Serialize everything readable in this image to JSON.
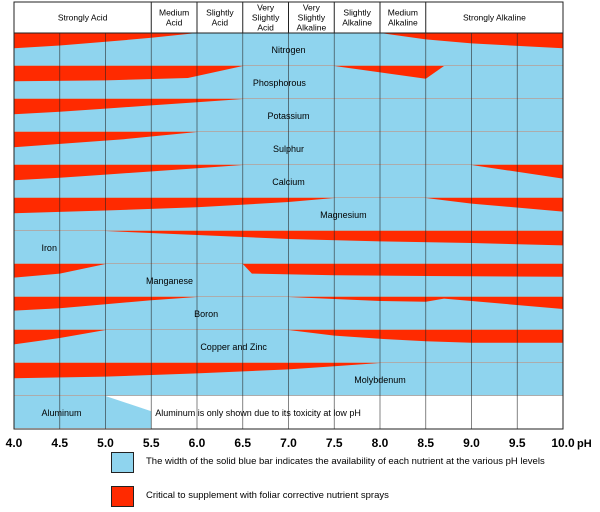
{
  "colors": {
    "blue": "#8fd4ee",
    "red": "#ff2a00",
    "grid": "#222222"
  },
  "header": [
    {
      "label": "Strongly Acid",
      "from": 4.0,
      "to": 5.5
    },
    {
      "label": "Medium Acid",
      "from": 5.5,
      "to": 6.0
    },
    {
      "label": "Slightly Acid",
      "from": 6.0,
      "to": 6.5
    },
    {
      "label": "Very Slightly Acid",
      "from": 6.5,
      "to": 7.0
    },
    {
      "label": "Very Slightly Alkaline",
      "from": 7.0,
      "to": 7.5
    },
    {
      "label": "Slightly Alkaline",
      "from": 7.5,
      "to": 8.0
    },
    {
      "label": "Medium Alkaline",
      "from": 8.0,
      "to": 8.5
    },
    {
      "label": "Strongly Alkaline",
      "from": 8.5,
      "to": 10.0
    }
  ],
  "x_axis": {
    "unit": "pH",
    "ticks": [
      "4.0",
      "4.5",
      "5.0",
      "5.5",
      "6.0",
      "6.5",
      "7.0",
      "7.5",
      "8.0",
      "8.5",
      "9.0",
      "9.5",
      "10.0"
    ],
    "min": 4.0,
    "max": 10.0
  },
  "chart_data": {
    "type": "area",
    "x_unit": "pH",
    "y_meaning": "relative availability (band width, 0 to 1)",
    "series": [
      {
        "name": "Nitrogen",
        "label_ph": 7.0,
        "label_align": "center",
        "red": true,
        "availability": [
          [
            4.0,
            0.05
          ],
          [
            4.5,
            0.22
          ],
          [
            5.0,
            0.45
          ],
          [
            5.5,
            0.7
          ],
          [
            6.0,
            1.0
          ],
          [
            8.0,
            1.0
          ],
          [
            8.5,
            0.6
          ],
          [
            9.0,
            0.35
          ],
          [
            10.0,
            0.05
          ]
        ]
      },
      {
        "name": "Phosphorous",
        "label_ph": 6.9,
        "label_align": "center",
        "red": true,
        "availability": [
          [
            4.0,
            0.05
          ],
          [
            5.0,
            0.1
          ],
          [
            5.9,
            0.25
          ],
          [
            6.5,
            1.0
          ],
          [
            7.5,
            1.0
          ],
          [
            8.5,
            0.2
          ],
          [
            8.7,
            1.0
          ],
          [
            10.0,
            1.0
          ]
        ]
      },
      {
        "name": "Potassium",
        "label_ph": 7.0,
        "label_align": "center",
        "red": true,
        "availability": [
          [
            4.0,
            0.05
          ],
          [
            4.5,
            0.2
          ],
          [
            5.0,
            0.4
          ],
          [
            5.5,
            0.6
          ],
          [
            6.0,
            0.8
          ],
          [
            6.5,
            1.0
          ],
          [
            10.0,
            1.0
          ]
        ]
      },
      {
        "name": "Sulphur",
        "label_ph": 7.0,
        "label_align": "center",
        "red": true,
        "availability": [
          [
            4.0,
            0.05
          ],
          [
            4.6,
            0.3
          ],
          [
            5.2,
            0.55
          ],
          [
            6.0,
            1.0
          ],
          [
            10.0,
            1.0
          ]
        ]
      },
      {
        "name": "Calcium",
        "label_ph": 7.0,
        "label_align": "center",
        "red": true,
        "availability": [
          [
            4.0,
            0.05
          ],
          [
            4.5,
            0.2
          ],
          [
            5.0,
            0.4
          ],
          [
            6.0,
            0.8
          ],
          [
            6.5,
            1.0
          ],
          [
            9.0,
            1.0
          ],
          [
            10.0,
            0.15
          ]
        ]
      },
      {
        "name": "Magnesium",
        "label_ph": 7.6,
        "label_align": "center",
        "red": true,
        "availability": [
          [
            4.0,
            0.05
          ],
          [
            5.0,
            0.22
          ],
          [
            6.0,
            0.42
          ],
          [
            7.0,
            0.75
          ],
          [
            7.5,
            1.0
          ],
          [
            8.5,
            1.0
          ],
          [
            9.0,
            0.65
          ],
          [
            10.0,
            0.15
          ]
        ]
      },
      {
        "name": "Iron",
        "label_ph": 4.3,
        "label_align": "left",
        "red": true,
        "availability": [
          [
            4.0,
            1.0
          ],
          [
            5.0,
            1.0
          ],
          [
            6.0,
            0.75
          ],
          [
            7.0,
            0.5
          ],
          [
            8.0,
            0.35
          ],
          [
            9.0,
            0.25
          ],
          [
            10.0,
            0.1
          ]
        ]
      },
      {
        "name": "Manganese",
        "label_ph": 5.7,
        "label_align": "center",
        "red": true,
        "availability": [
          [
            4.0,
            0.15
          ],
          [
            4.5,
            0.4
          ],
          [
            5.0,
            1.0
          ],
          [
            6.5,
            1.0
          ],
          [
            6.6,
            0.4
          ],
          [
            7.5,
            0.3
          ],
          [
            8.5,
            0.25
          ],
          [
            10.0,
            0.2
          ]
        ]
      },
      {
        "name": "Boron",
        "label_ph": 6.1,
        "label_align": "center",
        "red": true,
        "availability": [
          [
            4.0,
            0.15
          ],
          [
            4.5,
            0.3
          ],
          [
            5.0,
            0.55
          ],
          [
            5.5,
            0.8
          ],
          [
            6.0,
            1.0
          ],
          [
            7.0,
            1.0
          ],
          [
            8.0,
            0.75
          ],
          [
            8.5,
            0.7
          ],
          [
            8.7,
            0.9
          ],
          [
            9.0,
            0.75
          ],
          [
            10.0,
            0.25
          ]
        ]
      },
      {
        "name": "Copper and Zinc",
        "label_ph": 6.4,
        "label_align": "center",
        "red": true,
        "availability": [
          [
            4.0,
            0.1
          ],
          [
            4.5,
            0.5
          ],
          [
            5.0,
            1.0
          ],
          [
            7.0,
            1.0
          ],
          [
            7.5,
            0.65
          ],
          [
            8.0,
            0.45
          ],
          [
            8.5,
            0.3
          ],
          [
            9.0,
            0.2
          ],
          [
            10.0,
            0.2
          ]
        ]
      },
      {
        "name": "Molybdenum",
        "label_ph": 8.0,
        "label_align": "center",
        "red": true,
        "availability": [
          [
            4.0,
            0.05
          ],
          [
            5.0,
            0.15
          ],
          [
            6.0,
            0.35
          ],
          [
            7.0,
            0.6
          ],
          [
            7.5,
            0.8
          ],
          [
            8.0,
            1.0
          ],
          [
            10.0,
            1.0
          ]
        ]
      },
      {
        "name": "Aluminum",
        "label_ph": 4.3,
        "label_align": "left",
        "red": false,
        "availability": [
          [
            4.0,
            1.0
          ],
          [
            5.0,
            1.0
          ],
          [
            5.5,
            0.05
          ]
        ]
      }
    ]
  },
  "aluminum_note": "Aluminum is only shown due to its toxicity at low pH",
  "legend": {
    "blue_text": "The width of the solid blue bar indicates the availability of each nutrient at the various pH levels",
    "red_text": "Critical to supplement with foliar corrective nutrient sprays"
  }
}
